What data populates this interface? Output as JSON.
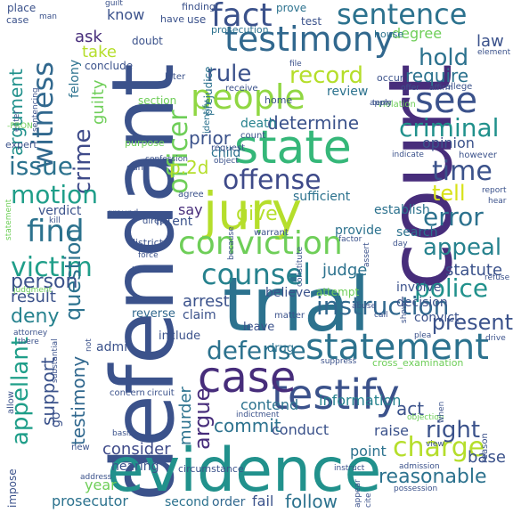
{
  "word_cloud": {
    "words": [
      {
        "text": "defendant",
        "color": "#3b528b"
      },
      {
        "text": "court",
        "color": "#472d7b"
      },
      {
        "text": "trial",
        "color": "#2c728e"
      },
      {
        "text": "evidence",
        "color": "#21918c"
      },
      {
        "text": "jury",
        "color": "#b5de2b"
      },
      {
        "text": "state",
        "color": "#35b779"
      },
      {
        "text": "testimony",
        "color": "#31688e"
      },
      {
        "text": "testify",
        "color": "#3b528b"
      },
      {
        "text": "case",
        "color": "#472d7b"
      },
      {
        "text": "statement",
        "color": "#2c728e"
      },
      {
        "text": "conviction",
        "color": "#6ece58"
      },
      {
        "text": "people",
        "color": "#90d743"
      },
      {
        "text": "fact",
        "color": "#3b528b"
      },
      {
        "text": "sentence",
        "color": "#2c728e"
      },
      {
        "text": "counsel",
        "color": "#26828e"
      },
      {
        "text": "see",
        "color": "#3b528b"
      },
      {
        "text": "officer",
        "color": "#6ece58"
      },
      {
        "text": "witness",
        "color": "#31688e"
      },
      {
        "text": "offense",
        "color": "#3e4a89"
      },
      {
        "text": "find",
        "color": "#2c728e"
      },
      {
        "text": "victim",
        "color": "#1f9e89"
      },
      {
        "text": "instruction",
        "color": "#31688e"
      },
      {
        "text": "defense",
        "color": "#2c728e"
      },
      {
        "text": "charge",
        "color": "#b5de2b"
      },
      {
        "text": "police",
        "color": "#21918c"
      },
      {
        "text": "appeal",
        "color": "#26828e"
      },
      {
        "text": "error",
        "color": "#2c728e"
      },
      {
        "text": "criminal",
        "color": "#21918c"
      },
      {
        "text": "crime",
        "color": "#3e4a89"
      },
      {
        "text": "issue",
        "color": "#2c728e"
      },
      {
        "text": "motion",
        "color": "#1f9e89"
      },
      {
        "text": "time",
        "color": "#3b528b"
      },
      {
        "text": "record",
        "color": "#b5de2b"
      },
      {
        "text": "rule",
        "color": "#3b528b"
      },
      {
        "text": "hold",
        "color": "#2c728e"
      },
      {
        "text": "question",
        "color": "#2c728e"
      },
      {
        "text": "appellant",
        "color": "#1f9e89"
      },
      {
        "text": "right",
        "color": "#3b528b"
      },
      {
        "text": "argue",
        "color": "#472d7b"
      },
      {
        "text": "present",
        "color": "#3b528b"
      },
      {
        "text": "reasonable",
        "color": "#2c728e"
      },
      {
        "text": "person",
        "color": "#3b528b"
      },
      {
        "text": "deny",
        "color": "#26828e"
      },
      {
        "text": "murder",
        "color": "#2c728e"
      },
      {
        "text": "determine",
        "color": "#3b528b"
      },
      {
        "text": "argument",
        "color": "#21918c"
      },
      {
        "text": "guilty",
        "color": "#6ece58"
      },
      {
        "text": "p.2d",
        "color": "#b5de2b"
      },
      {
        "text": "give",
        "color": "#b5de2b"
      },
      {
        "text": "tell",
        "color": "#d8e219"
      },
      {
        "text": "require",
        "color": "#2c728e"
      },
      {
        "text": "prior",
        "color": "#3b528b"
      },
      {
        "text": "support",
        "color": "#3b528b"
      },
      {
        "text": "testimony",
        "color": "#31688e"
      },
      {
        "text": "commit",
        "color": "#2c728e"
      },
      {
        "text": "arrest",
        "color": "#3b528b"
      },
      {
        "text": "judge",
        "color": "#2c728e"
      },
      {
        "text": "consider",
        "color": "#3e4a89"
      },
      {
        "text": "result",
        "color": "#3b528b"
      },
      {
        "text": "attempt",
        "color": "#6ece58"
      },
      {
        "text": "act",
        "color": "#3b528b"
      },
      {
        "text": "base",
        "color": "#3b528b"
      },
      {
        "text": "follow",
        "color": "#2c728e"
      },
      {
        "text": "information",
        "color": "#26828e"
      },
      {
        "text": "statute",
        "color": "#3b528b"
      },
      {
        "text": "opinion",
        "color": "#3b528b"
      },
      {
        "text": "year",
        "color": "#6ece58"
      },
      {
        "text": "conduct",
        "color": "#3b528b"
      },
      {
        "text": "point",
        "color": "#2c728e"
      },
      {
        "text": "raise",
        "color": "#3b528b"
      },
      {
        "text": "contend",
        "color": "#2c728e"
      },
      {
        "text": "fail",
        "color": "#3b528b"
      },
      {
        "text": "prosecutor",
        "color": "#2c728e"
      },
      {
        "text": "hearing",
        "color": "#3b528b"
      },
      {
        "text": "second",
        "color": "#2c728e"
      },
      {
        "text": "order",
        "color": "#31688e"
      },
      {
        "text": "law",
        "color": "#3b528b"
      },
      {
        "text": "ask",
        "color": "#472d7b"
      },
      {
        "text": "take",
        "color": "#b5de2b"
      },
      {
        "text": "know",
        "color": "#3b528b"
      },
      {
        "text": "degree",
        "color": "#6ece58"
      },
      {
        "text": "review",
        "color": "#2c728e"
      },
      {
        "text": "death",
        "color": "#26828e"
      },
      {
        "text": "say",
        "color": "#472d7b"
      },
      {
        "text": "child",
        "color": "#2c728e"
      },
      {
        "text": "intent",
        "color": "#3b528b"
      },
      {
        "text": "verdict",
        "color": "#3b528b"
      },
      {
        "text": "sufficient",
        "color": "#2c728e"
      },
      {
        "text": "establish",
        "color": "#2c728e"
      },
      {
        "text": "search",
        "color": "#2c728e"
      },
      {
        "text": "provide",
        "color": "#2c728e"
      },
      {
        "text": "believe",
        "color": "#3b528b"
      },
      {
        "text": "admit",
        "color": "#3b528b"
      },
      {
        "text": "claim",
        "color": "#3b528b"
      },
      {
        "text": "leave",
        "color": "#3b528b"
      },
      {
        "text": "include",
        "color": "#3b528b"
      },
      {
        "text": "reverse",
        "color": "#31688e"
      },
      {
        "text": "drug",
        "color": "#2c728e"
      },
      {
        "text": "convict",
        "color": "#3b528b"
      },
      {
        "text": "decision",
        "color": "#3b528b"
      },
      {
        "text": "involve",
        "color": "#3b528b"
      },
      {
        "text": "felony",
        "color": "#2c728e"
      },
      {
        "text": "conclude",
        "color": "#3b528b"
      },
      {
        "text": "doubt",
        "color": "#3b528b"
      },
      {
        "text": "prove",
        "color": "#2c728e"
      },
      {
        "text": "test",
        "color": "#3b528b"
      },
      {
        "text": "prosecution",
        "color": "#2c728e"
      },
      {
        "text": "house",
        "color": "#2c728e"
      },
      {
        "text": "violation",
        "color": "#6ece58"
      },
      {
        "text": "use",
        "color": "#3b528b"
      },
      {
        "text": "finding",
        "color": "#3b528b"
      },
      {
        "text": "have",
        "color": "#3b528b"
      },
      {
        "text": "guilt",
        "color": "#3b528b"
      },
      {
        "text": "man",
        "color": "#3b528b"
      },
      {
        "text": "place",
        "color": "#3b528b"
      },
      {
        "text": "case",
        "color": "#3b528b"
      },
      {
        "text": "later",
        "color": "#3b528b"
      },
      {
        "text": "section",
        "color": "#6ece58"
      },
      {
        "text": "purpose",
        "color": "#6ece58"
      },
      {
        "text": "request",
        "color": "#3b528b"
      },
      {
        "text": "count",
        "color": "#3b528b"
      },
      {
        "text": "identify",
        "color": "#2c728e"
      },
      {
        "text": "home",
        "color": "#3b528b"
      },
      {
        "text": "receive",
        "color": "#3b528b"
      },
      {
        "text": "prejudice",
        "color": "#2c728e"
      },
      {
        "text": "file",
        "color": "#3b528b"
      },
      {
        "text": "occur",
        "color": "#3b528b"
      },
      {
        "text": "allege",
        "color": "#3b528b"
      },
      {
        "text": "element",
        "color": "#3b528b"
      },
      {
        "text": "offer",
        "color": "#3b528b"
      },
      {
        "text": "expert",
        "color": "#3b528b"
      },
      {
        "text": "enter",
        "color": "#3b528b"
      },
      {
        "text": "gun",
        "color": "#3b528b"
      },
      {
        "text": "kill",
        "color": "#3b528b"
      },
      {
        "text": "ground",
        "color": "#3b528b"
      },
      {
        "text": "direct",
        "color": "#3b528b"
      },
      {
        "text": "agree",
        "color": "#3b528b"
      },
      {
        "text": "district",
        "color": "#3b528b"
      },
      {
        "text": "force",
        "color": "#3b528b"
      },
      {
        "text": "juror",
        "color": "#3b528b"
      },
      {
        "text": "judgment",
        "color": "#6ece58"
      },
      {
        "text": "attorney",
        "color": "#3b528b"
      },
      {
        "text": "there",
        "color": "#3b528b"
      },
      {
        "text": "warrant",
        "color": "#3b528b"
      },
      {
        "text": "factor",
        "color": "#3b528b"
      },
      {
        "text": "day",
        "color": "#3b528b"
      },
      {
        "text": "however",
        "color": "#3b528b"
      },
      {
        "text": "indicate",
        "color": "#3b528b"
      },
      {
        "text": "report",
        "color": "#3b528b"
      },
      {
        "text": "hear",
        "color": "#3b528b"
      },
      {
        "text": "matter",
        "color": "#3b528b"
      },
      {
        "text": "abuse",
        "color": "#3b528b"
      },
      {
        "text": "plea",
        "color": "#3b528b"
      },
      {
        "text": "show",
        "color": "#3b528b"
      },
      {
        "text": "refuse",
        "color": "#3b528b"
      },
      {
        "text": "drive",
        "color": "#3b528b"
      },
      {
        "text": "suppress",
        "color": "#3b528b"
      },
      {
        "text": "cross_examination",
        "color": "#6ece58"
      },
      {
        "text": "indictment",
        "color": "#3b528b"
      },
      {
        "text": "circuit",
        "color": "#3b528b"
      },
      {
        "text": "concern",
        "color": "#3b528b"
      },
      {
        "text": "circumstance",
        "color": "#3b528b"
      },
      {
        "text": "basis",
        "color": "#3b528b"
      },
      {
        "text": "instruct",
        "color": "#3b528b"
      },
      {
        "text": "admission",
        "color": "#3b528b"
      },
      {
        "text": "possession",
        "color": "#3b528b"
      },
      {
        "text": "address",
        "color": "#3b528b"
      },
      {
        "text": "new",
        "color": "#3b528b"
      },
      {
        "text": "go",
        "color": "#3b528b"
      },
      {
        "text": "allow",
        "color": "#3b528b"
      },
      {
        "text": "impose",
        "color": "#3b528b"
      },
      {
        "text": "objection",
        "color": "#6ece58"
      },
      {
        "text": "when",
        "color": "#3b528b"
      },
      {
        "text": "view",
        "color": "#3b528b"
      },
      {
        "text": "reason",
        "color": "#3b528b"
      },
      {
        "text": "appear",
        "color": "#3b528b"
      },
      {
        "text": "cite",
        "color": "#3b528b"
      },
      {
        "text": "apply",
        "color": "#3b528b"
      },
      {
        "text": "-PRON-",
        "color": "#6ece58"
      },
      {
        "text": "confession",
        "color": "#3b528b"
      },
      {
        "text": "statement",
        "color": "#6ece58"
      },
      {
        "text": "because",
        "color": "#3b528b"
      },
      {
        "text": "assert",
        "color": "#3b528b"
      },
      {
        "text": "constitute",
        "color": "#3b528b"
      },
      {
        "text": "substantial",
        "color": "#3b528b"
      },
      {
        "text": "sentencing",
        "color": "#3b528b"
      },
      {
        "text": "affirm",
        "color": "#3b528b"
      },
      {
        "text": "term",
        "color": "#3b528b"
      },
      {
        "text": "object",
        "color": "#3b528b"
      },
      {
        "text": "call",
        "color": "#3b528b"
      },
      {
        "text": "not",
        "color": "#3b528b"
      },
      {
        "text": "return",
        "color": "#3b528b"
      }
    ]
  }
}
